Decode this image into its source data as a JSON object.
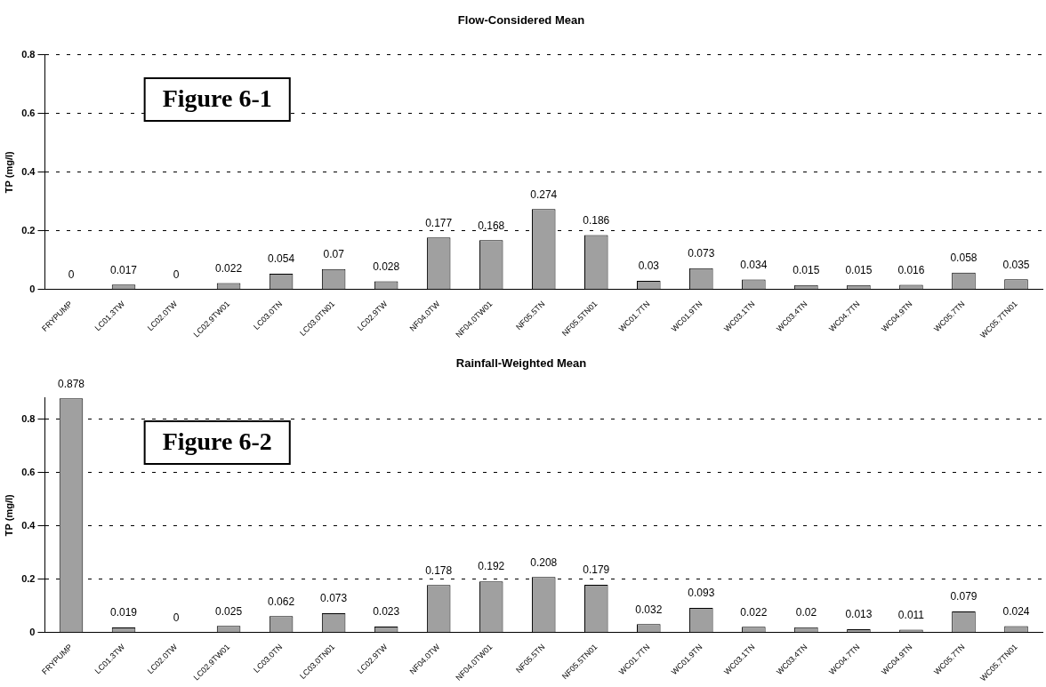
{
  "chart_data": [
    {
      "type": "bar",
      "title": "Flow-Considered Mean",
      "ylabel": "TP (mg/l)",
      "categories": [
        "FRYPUMP",
        "LC01.3TW",
        "LC02.0TW",
        "LC02.9TW01",
        "LC03.0TN",
        "LC03.0TN01",
        "LC02.9TW",
        "NF04.0TW",
        "NF04.0TW01",
        "NF05.5TN",
        "NF05.5TN01",
        "WC01.7TN",
        "WC01.9TN",
        "WC03.1TN",
        "WC03.4TN",
        "WC04.7TN",
        "WC04.9TN",
        "WC05.7TN",
        "WC05.7TN01"
      ],
      "values": [
        0,
        0.017,
        0,
        0.022,
        0.054,
        0.07,
        0.028,
        0.177,
        0.168,
        0.274,
        0.186,
        0.03,
        0.073,
        0.034,
        0.015,
        0.015,
        0.016,
        0.058,
        0.035
      ],
      "color": "#a0a0a0",
      "ylim": [
        0,
        0.8
      ],
      "yticks": [
        0,
        0.2,
        0.4,
        0.6,
        0.8
      ],
      "grid": "y",
      "data_labels": true,
      "legend": false,
      "annotations": [
        "Figure 6-1"
      ]
    },
    {
      "type": "bar",
      "title": "Rainfall-Weighted Mean",
      "ylabel": "TP (mg/l)",
      "categories": [
        "FRYPUMP",
        "LC01.3TW",
        "LC02.0TW",
        "LC02.9TW01",
        "LC03.0TN",
        "LC03.0TN01",
        "LC02.9TW",
        "NF04.0TW",
        "NF04.0TW01",
        "NF05.5TN",
        "NF05.5TN01",
        "WC01.7TN",
        "WC01.9TN",
        "WC03.1TN",
        "WC03.4TN",
        "WC04.7TN",
        "WC04.9TN",
        "WC05.7TN",
        "WC05.7TN01"
      ],
      "values": [
        0.878,
        0.019,
        0,
        0.025,
        0.062,
        0.073,
        0.023,
        0.178,
        0.192,
        0.208,
        0.179,
        0.032,
        0.093,
        0.022,
        0.02,
        0.013,
        0.011,
        0.079,
        0.024
      ],
      "color": "#a0a0a0",
      "ylim": [
        0,
        0.88
      ],
      "yticks": [
        0,
        0.2,
        0.4,
        0.6,
        0.8
      ],
      "grid": "y",
      "data_labels": true,
      "legend": false,
      "annotations": [
        "Figure 6-2"
      ]
    }
  ]
}
